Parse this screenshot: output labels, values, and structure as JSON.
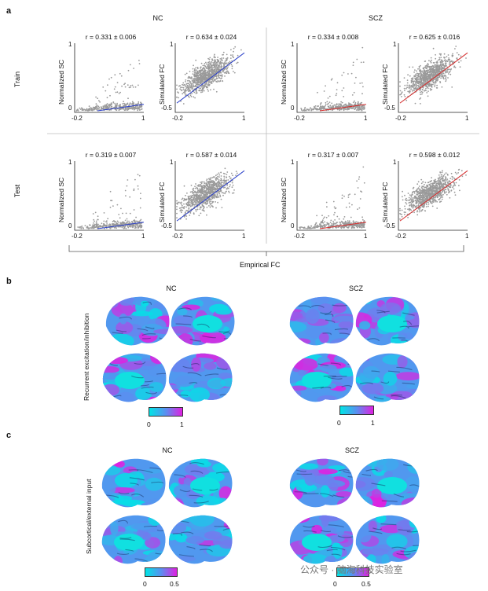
{
  "figure": {
    "panel_a": {
      "letter": "a",
      "groups": [
        "NC",
        "SCZ"
      ],
      "rows": [
        "Train",
        "Test"
      ],
      "x_axis_label": "Empirical  FC",
      "sc_ylabel": "Normalized SC",
      "fc_ylabel": "Simulated FC",
      "sc_yticks": [
        "1",
        "0"
      ],
      "fc_yticks": [
        "1",
        "-0.5"
      ],
      "xticks": [
        "-0.2",
        "1"
      ],
      "plots": [
        {
          "group": "NC",
          "row": "Train",
          "kind": "SC",
          "r_label": "r = 0.331 ± 0.006",
          "r": 0.331,
          "line_color": "#2a3fc9"
        },
        {
          "group": "NC",
          "row": "Train",
          "kind": "FC",
          "r_label": "r = 0.634 ± 0.024",
          "r": 0.634,
          "line_color": "#2a3fc9"
        },
        {
          "group": "SCZ",
          "row": "Train",
          "kind": "SC",
          "r_label": "r = 0.334 ± 0.008",
          "r": 0.334,
          "line_color": "#d42a2a"
        },
        {
          "group": "SCZ",
          "row": "Train",
          "kind": "FC",
          "r_label": "r = 0.625 ± 0.016",
          "r": 0.625,
          "line_color": "#d42a2a"
        },
        {
          "group": "NC",
          "row": "Test",
          "kind": "SC",
          "r_label": "r = 0.319 ± 0.007",
          "r": 0.319,
          "line_color": "#2a3fc9"
        },
        {
          "group": "NC",
          "row": "Test",
          "kind": "FC",
          "r_label": "r = 0.587 ± 0.014",
          "r": 0.587,
          "line_color": "#2a3fc9"
        },
        {
          "group": "SCZ",
          "row": "Test",
          "kind": "SC",
          "r_label": "r = 0.317 ± 0.007",
          "r": 0.317,
          "line_color": "#d42a2a"
        },
        {
          "group": "SCZ",
          "row": "Test",
          "kind": "FC",
          "r_label": "r = 0.598 ± 0.012",
          "r": 0.598,
          "line_color": "#d42a2a"
        }
      ]
    },
    "panel_b": {
      "letter": "b",
      "groups": [
        "NC",
        "SCZ"
      ],
      "ylabel": "Recurrent excitation/inhibition",
      "colorbar": {
        "min": "0",
        "max": "1",
        "from": "#00e5e5",
        "to": "#e020e0"
      }
    },
    "panel_c": {
      "letter": "c",
      "groups": [
        "NC",
        "SCZ"
      ],
      "ylabel": "Subcortical/external input",
      "colorbar": {
        "min": "0",
        "max": "0.5",
        "from": "#00e5e5",
        "to": "#e020e0"
      }
    },
    "watermark": "公众号 · 脑海科技实验室"
  }
}
